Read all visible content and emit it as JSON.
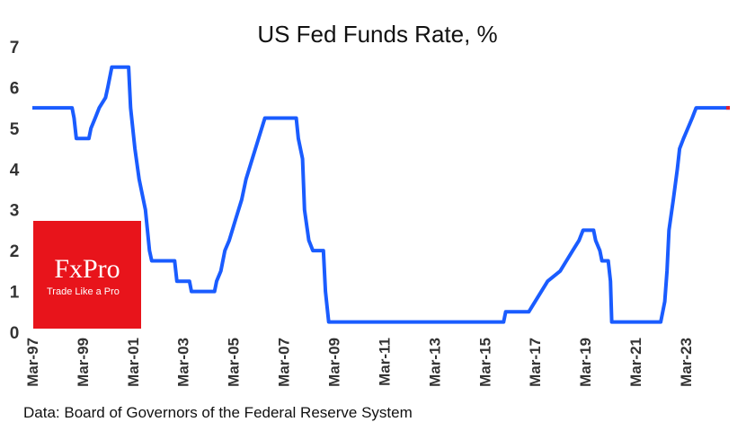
{
  "chart_data": {
    "type": "line",
    "title": "US Fed Funds Rate, %",
    "xlabel": "",
    "ylabel": "",
    "ylim": [
      0,
      7
    ],
    "yticks": [
      "0",
      "1",
      "2",
      "3",
      "4",
      "5",
      "6",
      "7"
    ],
    "xticks": [
      "Mar-97",
      "Mar-99",
      "Mar-01",
      "Mar-03",
      "Mar-05",
      "Mar-07",
      "Mar-09",
      "Mar-11",
      "Mar-13",
      "Mar-15",
      "Mar-17",
      "Mar-19",
      "Mar-21",
      "Mar-23"
    ],
    "xrange_year": [
      1997.17,
      2024.92
    ],
    "grid": false,
    "series": [
      {
        "name": "US Fed Funds Rate",
        "color": "#1a5cff",
        "end_marker_color": "#e8202a",
        "points": [
          [
            1997.17,
            5.5
          ],
          [
            1998.75,
            5.5
          ],
          [
            1998.83,
            5.25
          ],
          [
            1998.92,
            4.75
          ],
          [
            1999.42,
            4.75
          ],
          [
            1999.5,
            5.0
          ],
          [
            1999.67,
            5.25
          ],
          [
            1999.83,
            5.5
          ],
          [
            2000.08,
            5.75
          ],
          [
            2000.17,
            6.0
          ],
          [
            2000.33,
            6.5
          ],
          [
            2001.0,
            6.5
          ],
          [
            2001.08,
            5.5
          ],
          [
            2001.25,
            4.5
          ],
          [
            2001.42,
            3.75
          ],
          [
            2001.67,
            3.0
          ],
          [
            2001.83,
            2.0
          ],
          [
            2001.92,
            1.75
          ],
          [
            2002.83,
            1.75
          ],
          [
            2002.92,
            1.25
          ],
          [
            2003.42,
            1.25
          ],
          [
            2003.5,
            1.0
          ],
          [
            2004.42,
            1.0
          ],
          [
            2004.5,
            1.25
          ],
          [
            2004.67,
            1.5
          ],
          [
            2004.83,
            2.0
          ],
          [
            2005.0,
            2.25
          ],
          [
            2005.25,
            2.75
          ],
          [
            2005.5,
            3.25
          ],
          [
            2005.67,
            3.75
          ],
          [
            2005.92,
            4.25
          ],
          [
            2006.17,
            4.75
          ],
          [
            2006.42,
            5.25
          ],
          [
            2007.67,
            5.25
          ],
          [
            2007.75,
            4.75
          ],
          [
            2007.92,
            4.25
          ],
          [
            2008.0,
            3.0
          ],
          [
            2008.17,
            2.25
          ],
          [
            2008.33,
            2.0
          ],
          [
            2008.75,
            2.0
          ],
          [
            2008.83,
            1.0
          ],
          [
            2008.96,
            0.25
          ],
          [
            2015.92,
            0.25
          ],
          [
            2016.0,
            0.5
          ],
          [
            2016.92,
            0.5
          ],
          [
            2017.17,
            0.75
          ],
          [
            2017.42,
            1.0
          ],
          [
            2017.67,
            1.25
          ],
          [
            2018.17,
            1.5
          ],
          [
            2018.42,
            1.75
          ],
          [
            2018.67,
            2.0
          ],
          [
            2018.92,
            2.25
          ],
          [
            2019.08,
            2.5
          ],
          [
            2019.5,
            2.5
          ],
          [
            2019.58,
            2.25
          ],
          [
            2019.75,
            2.0
          ],
          [
            2019.83,
            1.75
          ],
          [
            2020.08,
            1.75
          ],
          [
            2020.17,
            1.25
          ],
          [
            2020.22,
            0.25
          ],
          [
            2022.17,
            0.25
          ],
          [
            2022.33,
            0.75
          ],
          [
            2022.42,
            1.5
          ],
          [
            2022.5,
            2.5
          ],
          [
            2022.67,
            3.25
          ],
          [
            2022.83,
            4.0
          ],
          [
            2022.92,
            4.5
          ],
          [
            2023.08,
            4.75
          ],
          [
            2023.25,
            5.0
          ],
          [
            2023.42,
            5.25
          ],
          [
            2023.58,
            5.5
          ],
          [
            2024.92,
            5.5
          ]
        ]
      }
    ]
  },
  "source_note": "Data: Board of Governors of the Federal Reserve System",
  "logo": {
    "name": "FxPro",
    "tagline": "Trade Like a Pro",
    "bg_color": "#e8141b"
  }
}
